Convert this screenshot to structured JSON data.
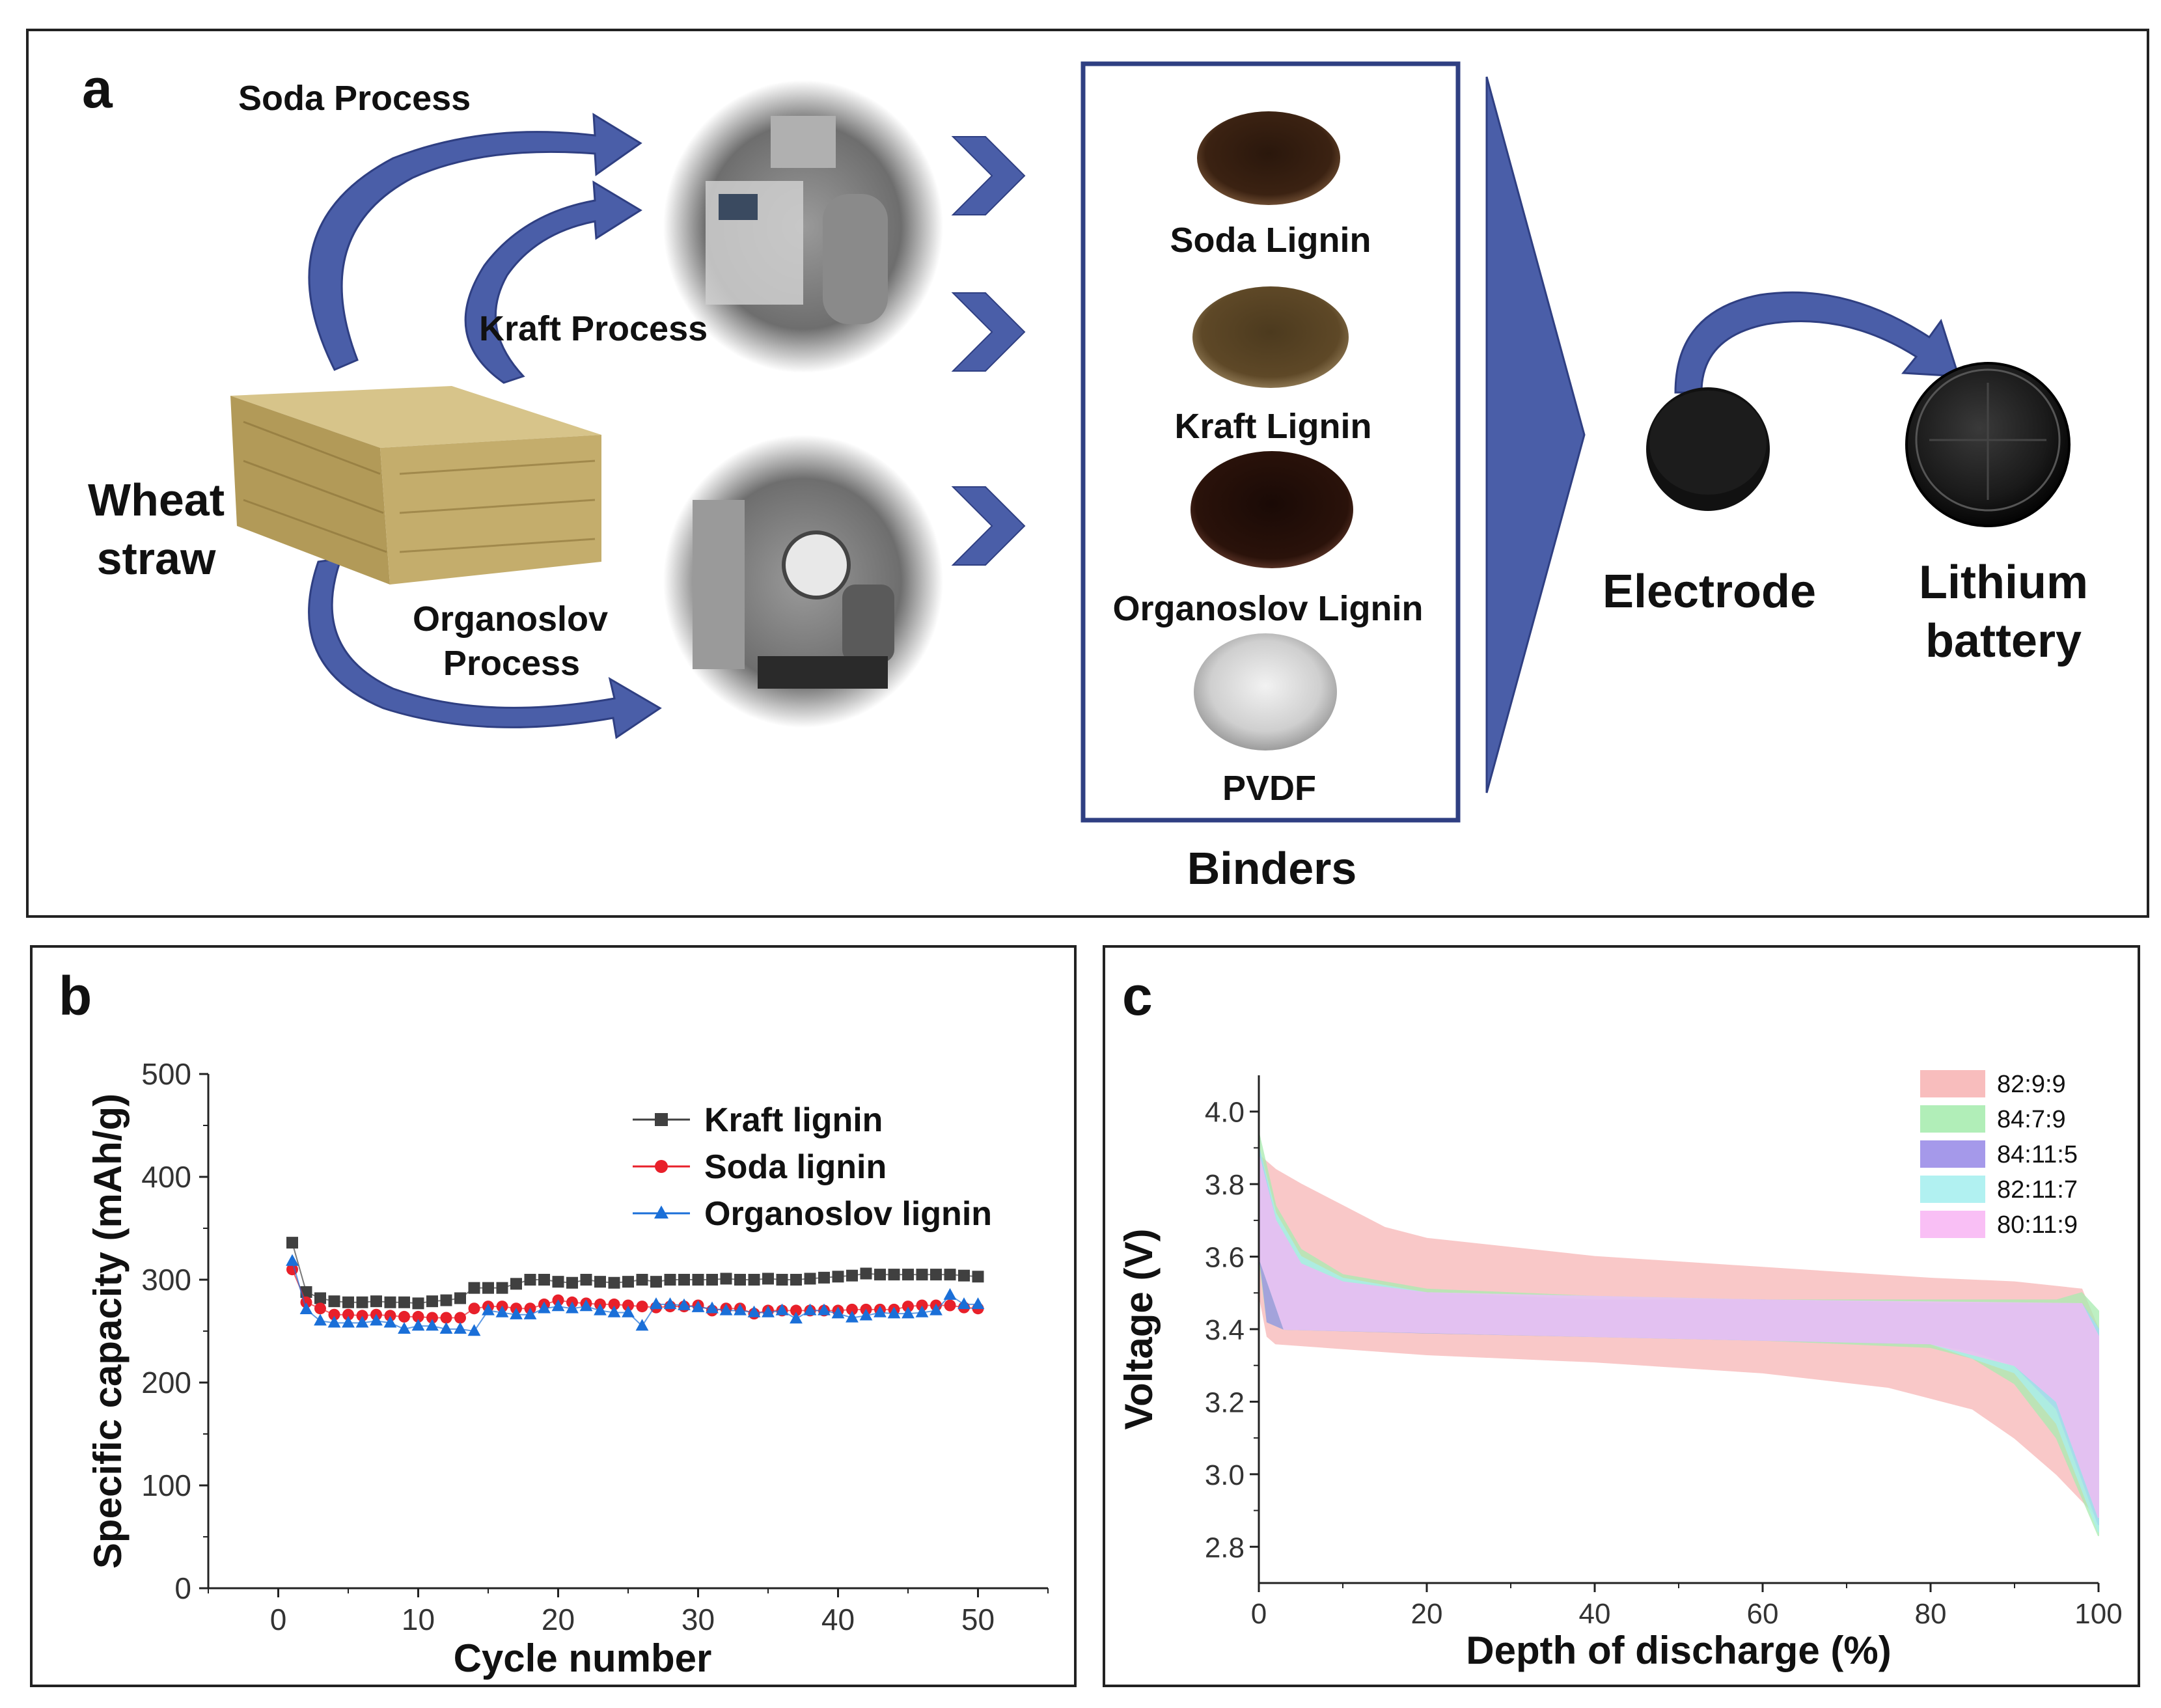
{
  "panel_a": {
    "letter": "a",
    "process_labels": {
      "soda": "Soda Process",
      "kraft": "Kraft Process",
      "organo_1": "Organoslov",
      "organo_2": "Process"
    },
    "source": {
      "line1": "Wheat",
      "line2": "straw"
    },
    "binders_title": "Binders",
    "binders": [
      "Soda Lignin",
      "Kraft Lignin",
      "Organoslov Lignin",
      "PVDF"
    ],
    "electrode": "Electrode",
    "battery": {
      "line1": "Lithium",
      "line2": "battery"
    },
    "colors": {
      "arrow": "#4a5ea8",
      "box": "#2f3f82"
    }
  },
  "panel_b": {
    "letter": "b",
    "chart_data": {
      "type": "line",
      "xlabel": "Cycle number",
      "ylabel": "Specific capacity (mAh/g)",
      "xlim": [
        -5,
        55
      ],
      "ylim": [
        0,
        500
      ],
      "xticks": [
        0,
        10,
        20,
        30,
        40,
        50
      ],
      "yticks": [
        0,
        100,
        200,
        300,
        400,
        500
      ],
      "x": [
        1,
        2,
        3,
        4,
        5,
        6,
        7,
        8,
        9,
        10,
        11,
        12,
        13,
        14,
        15,
        16,
        17,
        18,
        19,
        20,
        21,
        22,
        23,
        24,
        25,
        26,
        27,
        28,
        29,
        30,
        31,
        32,
        33,
        34,
        35,
        36,
        37,
        38,
        39,
        40,
        41,
        42,
        43,
        44,
        45,
        46,
        47,
        48,
        49,
        50
      ],
      "series": [
        {
          "name": "Kraft lignin",
          "color": "#404040",
          "marker": "square",
          "values": [
            336,
            288,
            282,
            279,
            278,
            278,
            279,
            278,
            278,
            277,
            279,
            280,
            282,
            292,
            292,
            292,
            296,
            300,
            300,
            298,
            297,
            300,
            298,
            297,
            298,
            300,
            298,
            300,
            300,
            300,
            300,
            301,
            300,
            300,
            301,
            300,
            300,
            301,
            302,
            303,
            304,
            306,
            305,
            305,
            305,
            305,
            305,
            305,
            304,
            303
          ]
        },
        {
          "name": "Soda lignin",
          "color": "#e8202a",
          "marker": "circle",
          "values": [
            310,
            278,
            272,
            266,
            266,
            265,
            266,
            265,
            264,
            264,
            263,
            263,
            263,
            272,
            274,
            274,
            272,
            272,
            276,
            280,
            278,
            277,
            276,
            276,
            275,
            274,
            273,
            274,
            274,
            275,
            270,
            272,
            272,
            267,
            270,
            270,
            270,
            270,
            270,
            270,
            271,
            271,
            271,
            271,
            274,
            275,
            275,
            275,
            273,
            272
          ]
        },
        {
          "name": "Organoslov lignin",
          "color": "#1a6fd8",
          "marker": "triangle",
          "values": [
            318,
            271,
            260,
            258,
            258,
            258,
            260,
            258,
            252,
            255,
            255,
            252,
            252,
            250,
            270,
            268,
            266,
            266,
            272,
            274,
            272,
            274,
            270,
            268,
            268,
            255,
            276,
            276,
            275,
            273,
            272,
            270,
            270,
            268,
            268,
            270,
            262,
            270,
            270,
            267,
            263,
            265,
            268,
            267,
            267,
            268,
            270,
            285,
            276,
            276
          ]
        }
      ]
    }
  },
  "panel_c": {
    "letter": "c",
    "chart_data": {
      "type": "area",
      "xlabel": "Depth of discharge (%)",
      "ylabel": "Voltage (V)",
      "xlim": [
        0,
        100
      ],
      "ylim": [
        2.7,
        4.1
      ],
      "xticks": [
        0,
        20,
        40,
        60,
        80,
        100
      ],
      "yticks": [
        2.8,
        3.0,
        3.2,
        3.4,
        3.6,
        3.8,
        4.0
      ],
      "series": [
        {
          "name": "82:9:9",
          "color": "#f7b6b6",
          "upper": [
            [
              0,
              3.88
            ],
            [
              2,
              3.84
            ],
            [
              5,
              3.8
            ],
            [
              10,
              3.74
            ],
            [
              15,
              3.68
            ],
            [
              20,
              3.65
            ],
            [
              40,
              3.6
            ],
            [
              60,
              3.57
            ],
            [
              80,
              3.54
            ],
            [
              90,
              3.53
            ],
            [
              98,
              3.51
            ],
            [
              100,
              3.4
            ]
          ],
          "lower": [
            [
              0,
              3.5
            ],
            [
              1,
              3.38
            ],
            [
              2,
              3.36
            ],
            [
              20,
              3.33
            ],
            [
              40,
              3.31
            ],
            [
              60,
              3.28
            ],
            [
              75,
              3.24
            ],
            [
              85,
              3.18
            ],
            [
              90,
              3.1
            ],
            [
              95,
              3.0
            ],
            [
              100,
              2.88
            ]
          ]
        },
        {
          "name": "84:7:9",
          "color": "#a8ecb0",
          "upper": [
            [
              0,
              3.94
            ],
            [
              2,
              3.74
            ],
            [
              5,
              3.62
            ],
            [
              10,
              3.55
            ],
            [
              20,
              3.51
            ],
            [
              40,
              3.49
            ],
            [
              60,
              3.48
            ],
            [
              80,
              3.48
            ],
            [
              95,
              3.48
            ],
            [
              98,
              3.5
            ],
            [
              100,
              3.45
            ]
          ],
          "lower": [
            [
              0,
              3.6
            ],
            [
              1,
              3.42
            ],
            [
              3,
              3.4
            ],
            [
              20,
              3.39
            ],
            [
              40,
              3.38
            ],
            [
              60,
              3.37
            ],
            [
              80,
              3.35
            ],
            [
              85,
              3.32
            ],
            [
              90,
              3.25
            ],
            [
              95,
              3.1
            ],
            [
              100,
              2.83
            ]
          ]
        },
        {
          "name": "84:11:5",
          "color": "#9b8ee8",
          "upper": [
            [
              0,
              3.9
            ],
            [
              2,
              3.7
            ],
            [
              5,
              3.58
            ],
            [
              10,
              3.53
            ],
            [
              20,
              3.5
            ],
            [
              40,
              3.48
            ],
            [
              60,
              3.48
            ],
            [
              80,
              3.47
            ],
            [
              95,
              3.47
            ],
            [
              98,
              3.47
            ],
            [
              100,
              3.4
            ]
          ],
          "lower": [
            [
              0,
              3.62
            ],
            [
              1,
              3.42
            ],
            [
              3,
              3.4
            ],
            [
              20,
              3.39
            ],
            [
              40,
              3.38
            ],
            [
              60,
              3.37
            ],
            [
              80,
              3.36
            ],
            [
              85,
              3.34
            ],
            [
              90,
              3.3
            ],
            [
              95,
              3.18
            ],
            [
              100,
              2.86
            ]
          ]
        },
        {
          "name": "82:11:7",
          "color": "#a8f0f0",
          "upper": [
            [
              0,
              3.9
            ],
            [
              2,
              3.72
            ],
            [
              5,
              3.6
            ],
            [
              10,
              3.54
            ],
            [
              20,
              3.5
            ],
            [
              60,
              3.48
            ],
            [
              98,
              3.47
            ],
            [
              100,
              3.4
            ]
          ],
          "lower": [
            [
              0,
              3.6
            ],
            [
              3,
              3.4
            ],
            [
              40,
              3.38
            ],
            [
              80,
              3.36
            ],
            [
              90,
              3.28
            ],
            [
              95,
              3.14
            ],
            [
              100,
              2.84
            ]
          ]
        },
        {
          "name": "80:11:9",
          "color": "#f8b8f4",
          "upper": [
            [
              0,
              3.88
            ],
            [
              2,
              3.7
            ],
            [
              5,
              3.58
            ],
            [
              10,
              3.53
            ],
            [
              20,
              3.5
            ],
            [
              60,
              3.48
            ],
            [
              98,
              3.47
            ],
            [
              100,
              3.38
            ]
          ],
          "lower": [
            [
              0,
              3.6
            ],
            [
              3,
              3.4
            ],
            [
              40,
              3.38
            ],
            [
              80,
              3.36
            ],
            [
              90,
              3.3
            ],
            [
              95,
              3.2
            ],
            [
              100,
              2.88
            ]
          ]
        }
      ]
    }
  }
}
